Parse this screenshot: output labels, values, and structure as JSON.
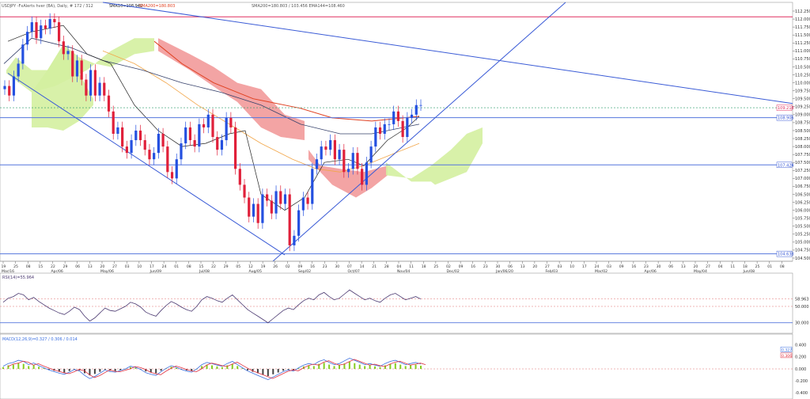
{
  "header": {
    "symbol_line": "USDJPY -FxAlerts hver (BA), Daily, # 172 / 312",
    "sma10": "SMA10=108.940",
    "sma200": "SMA200=180.803",
    "indicators_extra": "SMA200=180.803 / 103.456  EMA144=108.460"
  },
  "colors": {
    "candle_up": "#2450e0",
    "candle_down": "#e0203a",
    "cloud_bull": "#d4f0a0",
    "cloud_bear": "#f29a9a",
    "trendline": "#3a5bd6",
    "h_line": "#5577dd",
    "top_line": "#e03060",
    "sma_red": "#e04020",
    "sma_orange": "#f2a64a",
    "sma_black": "#222222",
    "sma_navy": "#35406a",
    "rsi_line": "#4a3870",
    "macd_blue": "#3a6fe0",
    "macd_red": "#e03040",
    "hist_up": "#86cc22",
    "hist_down": "#444444"
  },
  "chart_data": {
    "type": "line",
    "title": "USDJPY Daily",
    "price_axis": {
      "ticks": [
        "112.250",
        "112.000",
        "111.750",
        "111.500",
        "111.250",
        "111.000",
        "110.750",
        "110.500",
        "110.250",
        "110.000",
        "109.750",
        "109.500",
        "109.250",
        "109.000",
        "108.750",
        "108.500",
        "108.250",
        "108.000",
        "107.750",
        "107.500",
        "107.250",
        "107.000",
        "106.750",
        "106.500",
        "106.250",
        "106.000",
        "105.750",
        "105.500",
        "105.250",
        "105.000",
        "104.750",
        "104.500"
      ],
      "ylim": [
        104.4,
        112.3
      ]
    },
    "price_labels": {
      "current": "109.218",
      "level_upper": "108.905",
      "level_mid": "107.424",
      "level_low": "104.633"
    },
    "x_ticks": [
      "19",
      "25",
      "08",
      "15",
      "22",
      "29",
      "06",
      "13",
      "20",
      "27",
      "03",
      "10",
      "17",
      "24",
      "01",
      "08",
      "15",
      "22",
      "29",
      "05",
      "12",
      "19",
      "26",
      "02",
      "09",
      "16",
      "23",
      "30",
      "07",
      "14",
      "21",
      "28",
      "04",
      "11",
      "18",
      "25",
      "02",
      "09",
      "16",
      "23",
      "30",
      "06",
      "13",
      "20",
      "27",
      "03",
      "10",
      "17",
      "24",
      "03",
      "09",
      "16",
      "23",
      "30",
      "06",
      "13",
      "20",
      "27",
      "04",
      "11",
      "18",
      "25",
      "01",
      "08"
    ],
    "x_month_labels": [
      "Mar/16",
      "Apr/06",
      "May/06",
      "Jun/09",
      "Jul/08",
      "Aug/05",
      "Sep/02",
      "Oct/07",
      "Nov/04",
      "Dec/02",
      "Jan/06/20",
      "Feb/03",
      "Mar/02",
      "Apr/06",
      "May/04",
      "Jun/08"
    ],
    "series": [
      {
        "name": "USDJPY",
        "values": [
          109.9,
          109.6,
          110.2,
          110.6,
          111.2,
          111.6,
          111.9,
          111.4,
          111.8,
          111.7,
          112.0,
          111.9,
          111.3,
          110.9,
          111.0,
          110.2,
          110.7,
          110.1,
          109.6,
          110.4,
          109.6,
          110.0,
          109.6,
          109.1,
          108.4,
          108.6,
          108.0,
          107.8,
          108.2,
          108.5,
          108.2,
          107.9,
          107.6,
          107.8,
          108.4,
          108.0,
          107.2,
          107.0,
          107.6,
          108.1,
          108.6,
          108.2,
          108.0,
          108.7,
          108.6,
          109.0,
          108.3,
          107.9,
          108.2,
          108.9,
          108.6,
          107.3,
          106.8,
          106.4,
          105.8,
          106.2,
          105.6,
          106.5,
          106.3,
          105.9,
          106.6,
          106.2,
          106.5,
          104.9,
          105.2,
          106.0,
          106.4,
          106.2,
          107.3,
          107.6,
          108.0,
          107.9,
          108.2,
          107.6,
          107.9,
          107.2,
          107.3,
          107.8,
          107.3,
          106.8,
          107.5,
          108.0,
          108.6,
          108.4,
          108.7,
          108.7,
          109.1,
          108.8,
          108.3,
          108.9,
          109.0,
          109.3,
          109.3
        ]
      },
      {
        "name": "RSI(14)",
        "values": [
          55,
          60,
          62,
          66,
          64,
          58,
          61,
          56,
          52,
          48,
          45,
          42,
          40,
          44,
          49,
          46,
          38,
          32,
          36,
          42,
          48,
          45,
          44,
          47,
          50,
          55,
          53,
          49,
          43,
          40,
          38,
          45,
          51,
          56,
          53,
          49,
          46,
          44,
          50,
          58,
          62,
          60,
          57,
          55,
          60,
          64,
          58,
          52,
          46,
          42,
          38,
          34,
          30,
          35,
          40,
          45,
          48,
          46,
          52,
          57,
          60,
          58,
          64,
          67,
          62,
          58,
          60,
          65,
          70,
          66,
          62,
          58,
          60,
          57,
          55,
          60,
          64,
          66,
          62,
          58,
          60,
          62,
          59
        ]
      }
    ],
    "rsi_panel": {
      "title": "RSI(14)=55.964",
      "ticks": [
        "58.963",
        "50.000",
        "30.000"
      ]
    },
    "macd_panel": {
      "title": "MACD(12,26,9)=0.327 / 0.306 / 0.014",
      "ticks": [
        "0.400",
        "0.200",
        "0.000",
        "-0.200",
        "-0.400"
      ],
      "labels": [
        "0.327",
        "0.306"
      ]
    },
    "grid": false,
    "legend": "none"
  }
}
